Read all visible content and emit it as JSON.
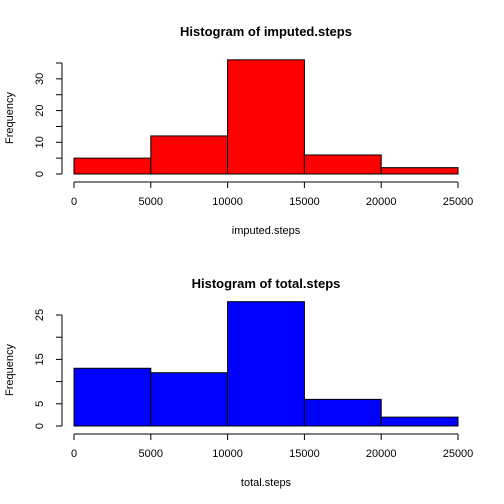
{
  "chart_data": [
    {
      "type": "bar",
      "title": "Histogram of imputed.steps",
      "xlabel": "imputed.steps",
      "ylabel": "Frequency",
      "bins": [
        [
          0,
          5000
        ],
        [
          5000,
          10000
        ],
        [
          10000,
          15000
        ],
        [
          15000,
          20000
        ],
        [
          20000,
          25000
        ]
      ],
      "values": [
        5,
        12,
        36,
        6,
        2
      ],
      "xlim": [
        0,
        25000
      ],
      "ylim": [
        0,
        35
      ],
      "xticks": [
        "0",
        "5000",
        "10000",
        "15000",
        "20000",
        "25000"
      ],
      "yticks": [
        "0",
        "10",
        "20",
        "30"
      ],
      "yticks_minor": [
        5,
        15,
        25,
        35
      ],
      "fill": "#ff0000",
      "grid": false
    },
    {
      "type": "bar",
      "title": "Histogram of total.steps",
      "xlabel": "total.steps",
      "ylabel": "Frequency",
      "bins": [
        [
          0,
          5000
        ],
        [
          5000,
          10000
        ],
        [
          10000,
          15000
        ],
        [
          15000,
          20000
        ],
        [
          20000,
          25000
        ]
      ],
      "values": [
        13,
        12,
        28,
        6,
        2
      ],
      "xlim": [
        0,
        25000
      ],
      "ylim": [
        0,
        25
      ],
      "xticks": [
        "0",
        "5000",
        "10000",
        "15000",
        "20000",
        "25000"
      ],
      "yticks": [
        "0",
        "5",
        "15",
        "25"
      ],
      "yticks_minor": [
        10,
        20
      ],
      "fill": "#0000ff",
      "grid": false
    }
  ]
}
